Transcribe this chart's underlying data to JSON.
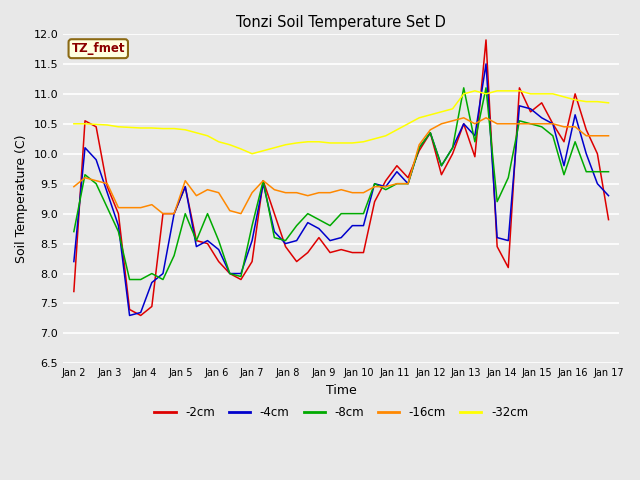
{
  "title": "Tonzi Soil Temperature Set D",
  "xlabel": "Time",
  "ylabel": "Soil Temperature (C)",
  "ylim": [
    6.5,
    12.0
  ],
  "annotation_text": "TZ_fmet",
  "annotation_color": "#8B0000",
  "annotation_bg": "#FFFFE0",
  "annotation_border": "#8B6914",
  "fig_bg": "#E8E8E8",
  "plot_bg": "#E8E8E8",
  "line_colors": {
    "-2cm": "#DD0000",
    "-4cm": "#0000CC",
    "-8cm": "#00AA00",
    "-16cm": "#FF8800",
    "-32cm": "#FFFF00"
  },
  "x_labels": [
    "Jan 2",
    "Jan 3",
    "Jan 4",
    "Jan 5",
    "Jan 6",
    "Jan 7",
    "Jan 8",
    "Jan 9",
    "Jan 10",
    "Jan 11",
    "Jan 12",
    "Jan 13",
    "Jan 14",
    "Jan 15",
    "Jan 16",
    "Jan 17"
  ],
  "yticks": [
    6.5,
    7.0,
    7.5,
    8.0,
    8.5,
    9.0,
    9.5,
    10.0,
    10.5,
    11.0,
    11.5,
    12.0
  ],
  "series": {
    "-2cm": [
      7.7,
      10.55,
      10.45,
      9.45,
      9.0,
      7.4,
      7.3,
      7.45,
      9.0,
      9.0,
      9.45,
      8.55,
      8.5,
      8.2,
      8.0,
      7.9,
      8.2,
      9.55,
      9.0,
      8.45,
      8.2,
      8.35,
      8.6,
      8.35,
      8.4,
      8.35,
      8.35,
      9.2,
      9.55,
      9.8,
      9.6,
      10.05,
      10.35,
      9.65,
      10.0,
      10.5,
      9.95,
      11.9,
      8.45,
      8.1,
      11.1,
      10.7,
      10.85,
      10.5,
      10.2,
      11.0,
      10.4,
      10.0,
      8.9
    ],
    "-4cm": [
      8.2,
      10.1,
      9.9,
      9.35,
      8.8,
      7.3,
      7.35,
      7.85,
      8.0,
      9.0,
      9.45,
      8.45,
      8.55,
      8.4,
      8.0,
      8.0,
      8.55,
      9.5,
      8.7,
      8.5,
      8.55,
      8.85,
      8.75,
      8.55,
      8.6,
      8.8,
      8.8,
      9.5,
      9.45,
      9.7,
      9.5,
      10.1,
      10.35,
      9.8,
      10.1,
      10.5,
      10.3,
      11.5,
      8.6,
      8.55,
      10.8,
      10.75,
      10.6,
      10.5,
      9.8,
      10.65,
      10.0,
      9.5,
      9.3
    ],
    "-8cm": [
      8.7,
      9.65,
      9.5,
      9.1,
      8.7,
      7.9,
      7.9,
      8.0,
      7.9,
      8.3,
      9.0,
      8.55,
      9.0,
      8.55,
      8.0,
      7.95,
      8.8,
      9.55,
      8.6,
      8.55,
      8.8,
      9.0,
      8.9,
      8.8,
      9.0,
      9.0,
      9.0,
      9.5,
      9.4,
      9.5,
      9.5,
      10.1,
      10.35,
      9.8,
      10.1,
      11.1,
      10.2,
      11.1,
      9.2,
      9.6,
      10.55,
      10.5,
      10.45,
      10.3,
      9.65,
      10.2,
      9.7,
      9.7,
      9.7
    ],
    "-16cm": [
      9.45,
      9.6,
      9.55,
      9.5,
      9.1,
      9.1,
      9.1,
      9.15,
      9.0,
      9.0,
      9.55,
      9.3,
      9.4,
      9.35,
      9.05,
      9.0,
      9.35,
      9.55,
      9.4,
      9.35,
      9.35,
      9.3,
      9.35,
      9.35,
      9.4,
      9.35,
      9.35,
      9.45,
      9.45,
      9.5,
      9.5,
      10.15,
      10.4,
      10.5,
      10.55,
      10.6,
      10.5,
      10.6,
      10.5,
      10.5,
      10.5,
      10.5,
      10.5,
      10.5,
      10.45,
      10.45,
      10.3,
      10.3,
      10.3
    ],
    "-32cm": [
      10.5,
      10.5,
      10.49,
      10.48,
      10.45,
      10.44,
      10.43,
      10.43,
      10.42,
      10.42,
      10.4,
      10.35,
      10.3,
      10.2,
      10.15,
      10.08,
      10.0,
      10.05,
      10.1,
      10.15,
      10.18,
      10.2,
      10.2,
      10.18,
      10.18,
      10.18,
      10.2,
      10.25,
      10.3,
      10.4,
      10.5,
      10.6,
      10.65,
      10.7,
      10.75,
      11.0,
      11.05,
      11.0,
      11.05,
      11.05,
      11.05,
      11.0,
      11.0,
      11.0,
      10.95,
      10.9,
      10.87,
      10.87,
      10.85
    ]
  }
}
